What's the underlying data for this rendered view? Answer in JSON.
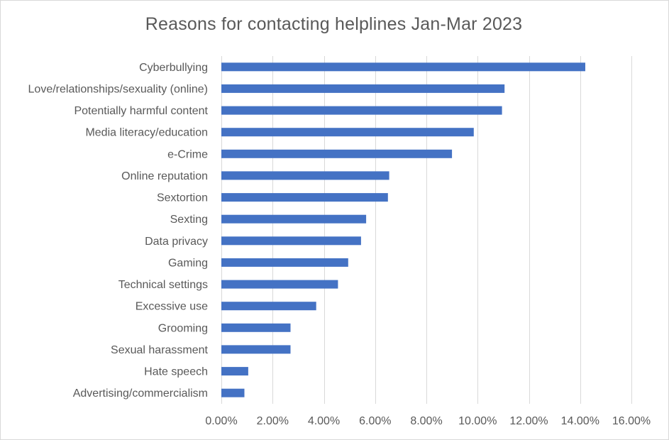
{
  "chart_data": {
    "type": "bar",
    "orientation": "horizontal",
    "title": "Reasons for contacting helplines Jan-Mar 2023",
    "xlabel": "",
    "ylabel": "",
    "xlim": [
      0,
      16
    ],
    "grid": true,
    "legend": "none",
    "bar_color": "#4472c4",
    "grid_color": "#d9d9d9",
    "text_color": "#595959",
    "x_tick_labels": [
      "0.00%",
      "2.00%",
      "4.00%",
      "6.00%",
      "8.00%",
      "10.00%",
      "12.00%",
      "14.00%",
      "16.00%"
    ],
    "categories": [
      "Cyberbullying",
      "Love/relationships/sexuality (online)",
      "Potentially harmful content",
      "Media literacy/education",
      "e-Crime",
      "Online reputation",
      "Sextortion",
      "Sexting",
      "Data privacy",
      "Gaming",
      "Technical settings",
      "Excessive use",
      "Grooming",
      "Sexual harassment",
      "Hate speech",
      "Advertising/commercialism"
    ],
    "values": [
      14.2,
      11.05,
      10.95,
      9.85,
      9.0,
      6.55,
      6.5,
      5.65,
      5.45,
      4.95,
      4.55,
      3.7,
      2.7,
      2.7,
      1.05,
      0.9
    ]
  }
}
